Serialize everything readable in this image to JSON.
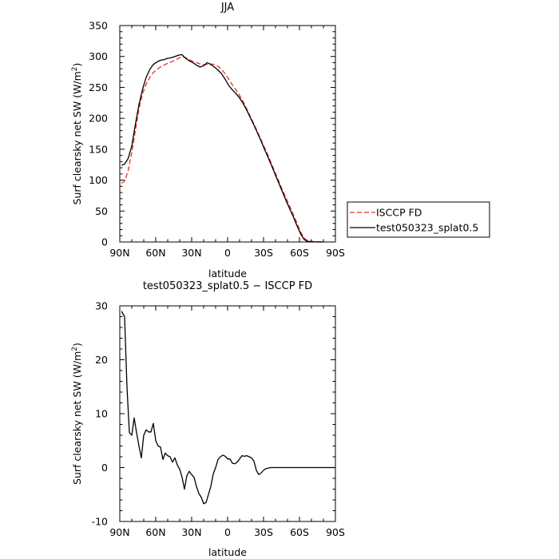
{
  "chart_data": [
    {
      "type": "line",
      "title": "JJA",
      "xlabel": "latitude",
      "ylabel": "Surf clearsky net SW (W/m",
      "ylabel_sup": "2",
      "ylabel_end": ")",
      "xlim": [
        -90,
        90
      ],
      "ylim": [
        0,
        350
      ],
      "x_ticks": [
        {
          "value": -90,
          "label": "90N"
        },
        {
          "value": -60,
          "label": "60N"
        },
        {
          "value": -30,
          "label": "30N"
        },
        {
          "value": 0,
          "label": "0"
        },
        {
          "value": 30,
          "label": "30S"
        },
        {
          "value": 60,
          "label": "60S"
        },
        {
          "value": 90,
          "label": "90S"
        }
      ],
      "y_ticks": [
        0,
        50,
        100,
        150,
        200,
        250,
        300,
        350
      ],
      "legend_position": "right",
      "series": [
        {
          "name": "ISCCP FD",
          "color": "#e8302a",
          "dash": "dashed",
          "x": [
            -88.5,
            -86,
            -83,
            -80,
            -77,
            -74,
            -71,
            -68,
            -65,
            -62,
            -59,
            -56,
            -53,
            -50,
            -47,
            -44,
            -41,
            -38,
            -35,
            -32,
            -29,
            -26,
            -23,
            -20,
            -17,
            -14,
            -11,
            -8,
            -5,
            -2,
            1,
            4,
            7,
            10,
            13,
            16,
            19,
            22,
            25,
            28,
            31,
            34,
            37,
            40,
            43,
            46,
            49,
            52,
            55,
            58,
            61,
            64,
            66,
            68,
            70,
            72,
            74,
            76,
            78,
            80
          ],
          "y": [
            95,
            98,
            115,
            145,
            180,
            215,
            240,
            255,
            266,
            274,
            279,
            283,
            286,
            289,
            291,
            294,
            297,
            300,
            298,
            295,
            292,
            290,
            288,
            287,
            287,
            288,
            287,
            284,
            279,
            272,
            263,
            254,
            246,
            237,
            227,
            215,
            203,
            191,
            178,
            165,
            152,
            139,
            125,
            111,
            97,
            83,
            70,
            57,
            44,
            30,
            16,
            6,
            3,
            1.5,
            1,
            0.5,
            0.3,
            0.2,
            0.1,
            0
          ]
        },
        {
          "name": "test050323_splat0.5",
          "color": "#000000",
          "dash": "solid",
          "x": [
            -88.5,
            -86,
            -83,
            -80,
            -77,
            -74,
            -71,
            -68,
            -65,
            -62,
            -59,
            -56,
            -53,
            -50,
            -47,
            -44,
            -41,
            -38,
            -35,
            -32,
            -29,
            -26,
            -23,
            -20,
            -17,
            -14,
            -11,
            -8,
            -5,
            -2,
            1,
            4,
            7,
            10,
            13,
            16,
            19,
            22,
            25,
            28,
            31,
            34,
            37,
            40,
            43,
            46,
            49,
            52,
            55,
            58,
            61,
            64,
            66,
            68,
            70,
            72,
            74,
            76,
            78,
            80
          ],
          "y": [
            124,
            126,
            135,
            155,
            190,
            222,
            247,
            266,
            279,
            287,
            291,
            294,
            295,
            297,
            298,
            300,
            302,
            303,
            297,
            293,
            290,
            286,
            283,
            285,
            290,
            287,
            283,
            278,
            272,
            263,
            253,
            246,
            240,
            233,
            224,
            213,
            201,
            189,
            176,
            163,
            149,
            136,
            122,
            108,
            94,
            80,
            66,
            53,
            40,
            26,
            13,
            4,
            1.5,
            0.7,
            0.4,
            0.2,
            0.1,
            0.05,
            0,
            0
          ]
        }
      ]
    },
    {
      "type": "line",
      "title": "test050323_splat0.5 − ISCCP FD",
      "xlabel": "latitude",
      "ylabel": "Surf clearsky net SW (W/m",
      "ylabel_sup": "2",
      "ylabel_end": ")",
      "xlim": [
        -90,
        90
      ],
      "ylim": [
        -10,
        30
      ],
      "x_ticks": [
        {
          "value": -90,
          "label": "90N"
        },
        {
          "value": -60,
          "label": "60N"
        },
        {
          "value": -30,
          "label": "30N"
        },
        {
          "value": 0,
          "label": "0"
        },
        {
          "value": 30,
          "label": "30S"
        },
        {
          "value": 60,
          "label": "60S"
        },
        {
          "value": 90,
          "label": "90S"
        }
      ],
      "y_ticks": [
        -10,
        0,
        10,
        20,
        30
      ],
      "series": [
        {
          "color": "#000000",
          "dash": "solid",
          "x": [
            -88.5,
            -86,
            -84,
            -82,
            -80,
            -78,
            -76,
            -74,
            -72,
            -70,
            -68,
            -66,
            -64,
            -62,
            -60,
            -58,
            -56,
            -54,
            -52,
            -50,
            -48,
            -46,
            -44,
            -42,
            -40,
            -38,
            -36,
            -34,
            -32,
            -30,
            -28,
            -26,
            -24,
            -22,
            -20,
            -18,
            -16,
            -14,
            -12,
            -10,
            -8,
            -6,
            -4,
            -2,
            0,
            2,
            4,
            6,
            8,
            10,
            12,
            14,
            16,
            18,
            20,
            22,
            24,
            26,
            28,
            30,
            32,
            34,
            36,
            38,
            40,
            42,
            44,
            46,
            48,
            50,
            52,
            54,
            56,
            58,
            60,
            62,
            64,
            66,
            68,
            70,
            72,
            74,
            76,
            78,
            80,
            82,
            84,
            86,
            88,
            90
          ],
          "y": [
            29,
            28,
            15,
            6.5,
            6,
            9.2,
            6.5,
            4,
            1.8,
            6,
            7,
            6.6,
            6.6,
            8.2,
            5,
            4,
            3.8,
            1.5,
            2.7,
            2.2,
            2,
            1,
            1.8,
            0.5,
            -0.3,
            -1.8,
            -4,
            -1.5,
            -0.7,
            -1.3,
            -1.8,
            -3.5,
            -4.8,
            -5.5,
            -6.7,
            -6.5,
            -5,
            -3.5,
            -1.2,
            0,
            1.5,
            2,
            2.3,
            2.1,
            1.6,
            1.6,
            0.8,
            0.7,
            1,
            1.6,
            2.2,
            2.1,
            2.2,
            2,
            1.8,
            1.2,
            -0.5,
            -1.3,
            -1,
            -0.5,
            -0.2,
            -0.1,
            0,
            0,
            0,
            0,
            0,
            0,
            0,
            0,
            0,
            0,
            0,
            0,
            0,
            0,
            0,
            0,
            0,
            0,
            0,
            0,
            0,
            0,
            0,
            0,
            0,
            0,
            0,
            0
          ]
        }
      ]
    }
  ]
}
